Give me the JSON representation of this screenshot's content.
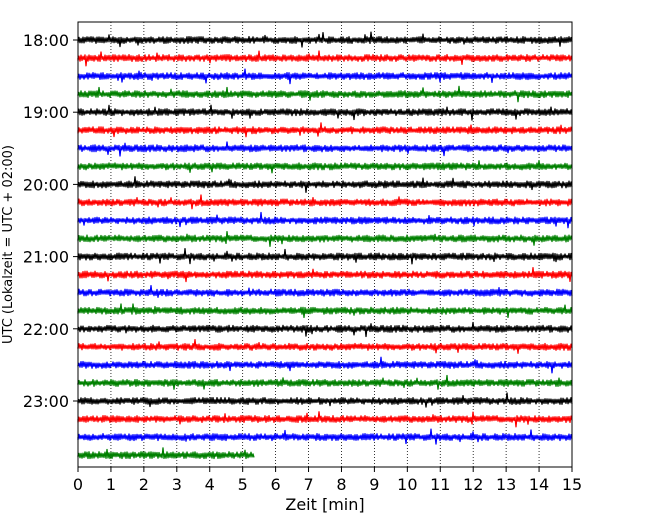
{
  "chart_data": {
    "type": "line",
    "title": "",
    "xlabel": "Zeit  [min]",
    "ylabel": "UTC (Lokalzeit = UTC + 02:00)",
    "xlim": [
      0,
      15
    ],
    "xticks": [
      "0",
      "1",
      "2",
      "3",
      "4",
      "5",
      "6",
      "7",
      "8",
      "9",
      "10",
      "11",
      "12",
      "13",
      "14",
      "15"
    ],
    "yticks": [
      {
        "label": "18:00",
        "trace": 0
      },
      {
        "label": "19:00",
        "trace": 4
      },
      {
        "label": "20:00",
        "trace": 8
      },
      {
        "label": "21:00",
        "trace": 12
      },
      {
        "label": "22:00",
        "trace": 16
      },
      {
        "label": "23:00",
        "trace": 20
      }
    ],
    "grid_x": true,
    "colors_cycle": [
      "#000000",
      "#ff0000",
      "#0000ff",
      "#008000"
    ],
    "traces": [
      {
        "start": "18:00",
        "end_minute": 15,
        "color": "#000000"
      },
      {
        "start": "18:15",
        "end_minute": 15,
        "color": "#ff0000"
      },
      {
        "start": "18:30",
        "end_minute": 15,
        "color": "#0000ff"
      },
      {
        "start": "18:45",
        "end_minute": 15,
        "color": "#008000"
      },
      {
        "start": "19:00",
        "end_minute": 15,
        "color": "#000000"
      },
      {
        "start": "19:15",
        "end_minute": 15,
        "color": "#ff0000"
      },
      {
        "start": "19:30",
        "end_minute": 15,
        "color": "#0000ff"
      },
      {
        "start": "19:45",
        "end_minute": 15,
        "color": "#008000"
      },
      {
        "start": "20:00",
        "end_minute": 15,
        "color": "#000000"
      },
      {
        "start": "20:15",
        "end_minute": 15,
        "color": "#ff0000"
      },
      {
        "start": "20:30",
        "end_minute": 15,
        "color": "#0000ff"
      },
      {
        "start": "20:45",
        "end_minute": 15,
        "color": "#008000"
      },
      {
        "start": "21:00",
        "end_minute": 15,
        "color": "#000000"
      },
      {
        "start": "21:15",
        "end_minute": 15,
        "color": "#ff0000"
      },
      {
        "start": "21:30",
        "end_minute": 15,
        "color": "#0000ff"
      },
      {
        "start": "21:45",
        "end_minute": 15,
        "color": "#008000"
      },
      {
        "start": "22:00",
        "end_minute": 15,
        "color": "#000000"
      },
      {
        "start": "22:15",
        "end_minute": 15,
        "color": "#ff0000"
      },
      {
        "start": "22:30",
        "end_minute": 15,
        "color": "#0000ff"
      },
      {
        "start": "22:45",
        "end_minute": 15,
        "color": "#008000"
      },
      {
        "start": "23:00",
        "end_minute": 15,
        "color": "#000000"
      },
      {
        "start": "23:15",
        "end_minute": 15,
        "color": "#ff0000"
      },
      {
        "start": "23:30",
        "end_minute": 15,
        "color": "#0000ff"
      },
      {
        "start": "23:45",
        "end_minute": 5.35,
        "color": "#008000"
      }
    ]
  }
}
